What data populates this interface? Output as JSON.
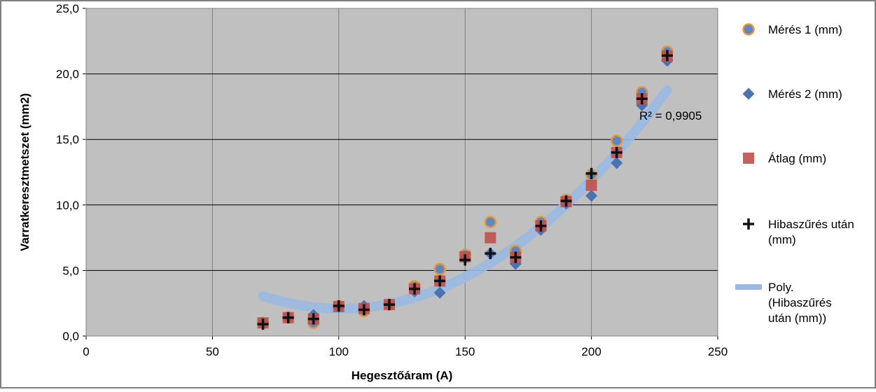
{
  "chart_data": {
    "type": "scatter",
    "title": "",
    "xlabel": "Hegesztőáram (A)",
    "ylabel": "Varratkeresztmetszet (mm2)",
    "xlim": [
      0,
      250
    ],
    "ylim": [
      0,
      25
    ],
    "x_ticks": [
      "0",
      "50",
      "100",
      "150",
      "200",
      "250"
    ],
    "y_ticks": [
      "0,0",
      "5,0",
      "10,0",
      "15,0",
      "20,0",
      "25,0"
    ],
    "grid": true,
    "legend_position": "right",
    "plot_background": "#c0c0c0",
    "series": [
      {
        "name": "Mérés 1 (mm)",
        "marker": "circle",
        "color": "#5b87c5",
        "edge_color": "#e7963a",
        "x": [
          70,
          80,
          90,
          100,
          110,
          120,
          130,
          140,
          150,
          160,
          170,
          180,
          190,
          200,
          210,
          220,
          230
        ],
        "y": [
          1.0,
          1.4,
          1.0,
          2.3,
          1.9,
          2.4,
          3.8,
          5.1,
          6.2,
          8.7,
          6.5,
          8.7,
          10.4,
          12.3,
          14.9,
          18.6,
          21.7
        ]
      },
      {
        "name": "Mérés 2 (mm)",
        "marker": "diamond",
        "color": "#4a73b0",
        "x": [
          70,
          80,
          90,
          100,
          110,
          120,
          130,
          140,
          150,
          160,
          170,
          180,
          190,
          200,
          210,
          220,
          230
        ],
        "y": [
          1.0,
          1.4,
          1.6,
          2.2,
          2.3,
          2.4,
          3.4,
          3.3,
          5.9,
          6.3,
          5.5,
          8.1,
          10.1,
          10.7,
          13.2,
          17.6,
          21.0
        ]
      },
      {
        "name": "Átlag (mm)",
        "marker": "square",
        "color": "#c0504d",
        "x": [
          70,
          80,
          90,
          100,
          110,
          120,
          130,
          140,
          150,
          160,
          170,
          180,
          190,
          200,
          210,
          220,
          230
        ],
        "y": [
          1.0,
          1.4,
          1.3,
          2.25,
          2.1,
          2.4,
          3.6,
          4.2,
          6.05,
          7.5,
          6.0,
          8.4,
          10.25,
          11.5,
          14.0,
          18.1,
          21.35
        ]
      },
      {
        "name": "Hibaszűrés után (mm)",
        "marker": "plus",
        "color": "#111111",
        "x": [
          70,
          80,
          90,
          100,
          110,
          120,
          130,
          140,
          150,
          160,
          170,
          180,
          190,
          200,
          210,
          220,
          230
        ],
        "y": [
          0.9,
          1.4,
          1.3,
          2.3,
          2.0,
          2.4,
          3.6,
          4.2,
          5.8,
          6.3,
          6.0,
          8.4,
          10.3,
          12.4,
          14.0,
          18.1,
          21.4
        ]
      }
    ],
    "trendline": {
      "name": "Poly. (Hibaszűrés után (mm))",
      "color": "#9ab9e2",
      "degree": 2,
      "x_range": [
        70,
        230
      ],
      "coefficients": [
        12.27,
        -0.2018,
        0.001
      ],
      "r2_label": "R² = 0,9905"
    }
  }
}
